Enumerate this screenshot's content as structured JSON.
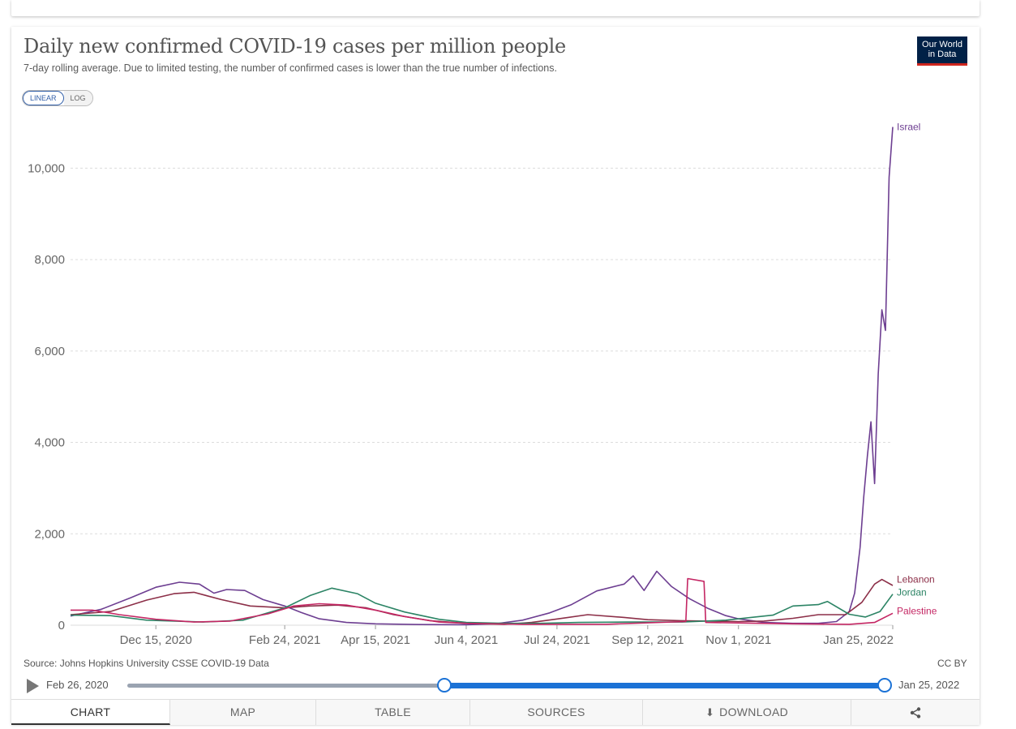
{
  "header": {
    "title": "Daily new confirmed COVID-19 cases per million people",
    "subtitle": "7-day rolling average. Due to limited testing, the number of confirmed cases is lower than the true number of infections.",
    "logo_line1": "Our World",
    "logo_line2": "in Data"
  },
  "scale_toggle": {
    "linear_label": "LINEAR",
    "log_label": "LOG",
    "selected": "linear"
  },
  "footer": {
    "source": "Source: Johns Hopkins University CSSE COVID-19 Data",
    "license": "CC BY"
  },
  "timeline": {
    "start_label": "Feb 26, 2020",
    "end_label": "Jan 25, 2022",
    "selected_start": "Oct 29, 2020",
    "selected_end": "Jan 25, 2022"
  },
  "tabs": [
    {
      "label": "CHART",
      "active": true
    },
    {
      "label": "MAP"
    },
    {
      "label": "TABLE"
    },
    {
      "label": "SOURCES"
    },
    {
      "label": "DOWNLOAD",
      "icon": "download-icon"
    },
    {
      "label": "",
      "icon": "share-icon"
    }
  ],
  "chart_data": {
    "type": "line",
    "title": "Daily new confirmed COVID-19 cases per million people",
    "subtitle": "7-day rolling average. Due to limited testing, the number of confirmed cases is lower than the true number of infections.",
    "xlabel": "",
    "ylabel": "",
    "x_range": [
      "2020-10-29",
      "2022-01-25"
    ],
    "ylim": [
      0,
      11000
    ],
    "y_ticks": [
      0,
      2000,
      4000,
      6000,
      8000,
      10000
    ],
    "y_tick_labels": [
      "0",
      "2,000",
      "4,000",
      "6,000",
      "8,000",
      "10,000"
    ],
    "x_ticks": [
      "2020-12-15",
      "2021-02-24",
      "2021-04-15",
      "2021-06-04",
      "2021-07-24",
      "2021-09-12",
      "2021-11-01",
      "2022-01-25"
    ],
    "x_tick_labels": [
      "Dec 15, 2020",
      "Feb 24, 2021",
      "Apr 15, 2021",
      "Jun 4, 2021",
      "Jul 24, 2021",
      "Sep 12, 2021",
      "Nov 1, 2021",
      "Jan 25, 2022"
    ],
    "grid": "horizontal dashed",
    "legend": "inline labels at right end of lines",
    "series": [
      {
        "name": "Israel",
        "color": "#6d3e91",
        "points": [
          [
            "2020-10-29",
            200
          ],
          [
            "2020-11-15",
            350
          ],
          [
            "2020-12-01",
            600
          ],
          [
            "2020-12-15",
            830
          ],
          [
            "2020-12-28",
            940
          ],
          [
            "2021-01-08",
            900
          ],
          [
            "2021-01-16",
            700
          ],
          [
            "2021-01-23",
            780
          ],
          [
            "2021-02-02",
            760
          ],
          [
            "2021-02-12",
            560
          ],
          [
            "2021-02-24",
            420
          ],
          [
            "2021-03-05",
            280
          ],
          [
            "2021-03-15",
            140
          ],
          [
            "2021-03-30",
            60
          ],
          [
            "2021-04-15",
            30
          ],
          [
            "2021-05-10",
            15
          ],
          [
            "2021-06-04",
            10
          ],
          [
            "2021-06-20",
            30
          ],
          [
            "2021-07-05",
            110
          ],
          [
            "2021-07-20",
            270
          ],
          [
            "2021-08-01",
            450
          ],
          [
            "2021-08-15",
            750
          ],
          [
            "2021-08-30",
            900
          ],
          [
            "2021-09-04",
            1080
          ],
          [
            "2021-09-10",
            760
          ],
          [
            "2021-09-17",
            1180
          ],
          [
            "2021-09-25",
            850
          ],
          [
            "2021-10-05",
            580
          ],
          [
            "2021-10-15",
            370
          ],
          [
            "2021-10-25",
            210
          ],
          [
            "2021-11-01",
            140
          ],
          [
            "2021-11-15",
            60
          ],
          [
            "2021-12-01",
            40
          ],
          [
            "2021-12-15",
            40
          ],
          [
            "2021-12-25",
            80
          ],
          [
            "2022-01-01",
            300
          ],
          [
            "2022-01-04",
            700
          ],
          [
            "2022-01-07",
            1700
          ],
          [
            "2022-01-09",
            2800
          ],
          [
            "2022-01-11",
            3700
          ],
          [
            "2022-01-13",
            4450
          ],
          [
            "2022-01-15",
            3100
          ],
          [
            "2022-01-17",
            5500
          ],
          [
            "2022-01-19",
            6900
          ],
          [
            "2022-01-21",
            6450
          ],
          [
            "2022-01-23",
            9800
          ],
          [
            "2022-01-25",
            10900
          ]
        ]
      },
      {
        "name": "Lebanon",
        "color": "#8c2f48",
        "points": [
          [
            "2020-10-29",
            230
          ],
          [
            "2020-11-20",
            300
          ],
          [
            "2020-12-10",
            550
          ],
          [
            "2020-12-25",
            690
          ],
          [
            "2021-01-05",
            720
          ],
          [
            "2021-01-20",
            560
          ],
          [
            "2021-02-05",
            420
          ],
          [
            "2021-02-24",
            380
          ],
          [
            "2021-03-10",
            420
          ],
          [
            "2021-03-25",
            440
          ],
          [
            "2021-04-10",
            380
          ],
          [
            "2021-04-25",
            230
          ],
          [
            "2021-05-15",
            100
          ],
          [
            "2021-06-04",
            40
          ],
          [
            "2021-06-25",
            20
          ],
          [
            "2021-07-10",
            60
          ],
          [
            "2021-07-25",
            140
          ],
          [
            "2021-08-10",
            230
          ],
          [
            "2021-08-30",
            170
          ],
          [
            "2021-09-12",
            120
          ],
          [
            "2021-09-30",
            100
          ],
          [
            "2021-10-15",
            90
          ],
          [
            "2021-11-01",
            80
          ],
          [
            "2021-11-15",
            90
          ],
          [
            "2021-12-01",
            150
          ],
          [
            "2021-12-15",
            230
          ],
          [
            "2021-12-30",
            230
          ],
          [
            "2022-01-08",
            500
          ],
          [
            "2022-01-15",
            900
          ],
          [
            "2022-01-19",
            1000
          ],
          [
            "2022-01-25",
            870
          ]
        ]
      },
      {
        "name": "Jordan",
        "color": "#2c8465",
        "points": [
          [
            "2020-10-29",
            220
          ],
          [
            "2020-11-20",
            210
          ],
          [
            "2020-12-10",
            110
          ],
          [
            "2021-01-10",
            70
          ],
          [
            "2021-02-01",
            110
          ],
          [
            "2021-02-24",
            380
          ],
          [
            "2021-03-10",
            650
          ],
          [
            "2021-03-22",
            810
          ],
          [
            "2021-04-05",
            690
          ],
          [
            "2021-04-15",
            480
          ],
          [
            "2021-05-01",
            290
          ],
          [
            "2021-05-20",
            130
          ],
          [
            "2021-06-04",
            60
          ],
          [
            "2021-06-25",
            40
          ],
          [
            "2021-07-15",
            40
          ],
          [
            "2021-08-05",
            60
          ],
          [
            "2021-09-01",
            70
          ],
          [
            "2021-10-01",
            70
          ],
          [
            "2021-10-25",
            110
          ],
          [
            "2021-11-10",
            180
          ],
          [
            "2021-11-20",
            220
          ],
          [
            "2021-12-01",
            420
          ],
          [
            "2021-12-15",
            450
          ],
          [
            "2021-12-20",
            520
          ],
          [
            "2022-01-01",
            240
          ],
          [
            "2022-01-10",
            180
          ],
          [
            "2022-01-18",
            300
          ],
          [
            "2022-01-25",
            680
          ]
        ]
      },
      {
        "name": "Palestine",
        "color": "#c42663",
        "points": [
          [
            "2020-10-29",
            330
          ],
          [
            "2020-11-10",
            330
          ],
          [
            "2020-11-25",
            230
          ],
          [
            "2020-12-15",
            130
          ],
          [
            "2021-01-05",
            70
          ],
          [
            "2021-01-25",
            90
          ],
          [
            "2021-02-15",
            250
          ],
          [
            "2021-03-01",
            420
          ],
          [
            "2021-03-15",
            470
          ],
          [
            "2021-03-30",
            440
          ],
          [
            "2021-04-15",
            330
          ],
          [
            "2021-05-01",
            190
          ],
          [
            "2021-05-20",
            70
          ],
          [
            "2021-06-04",
            40
          ],
          [
            "2021-07-05",
            20
          ],
          [
            "2021-07-24",
            20
          ],
          [
            "2021-08-20",
            20
          ],
          [
            "2021-09-10",
            50
          ],
          [
            "2021-10-03",
            80
          ],
          [
            "2021-10-04",
            1020
          ],
          [
            "2021-10-13",
            960
          ],
          [
            "2021-10-14",
            60
          ],
          [
            "2021-11-01",
            50
          ],
          [
            "2021-12-01",
            30
          ],
          [
            "2022-01-01",
            20
          ],
          [
            "2022-01-15",
            60
          ],
          [
            "2022-01-25",
            260
          ]
        ]
      }
    ],
    "label_y_values": {
      "Israel": 10900,
      "Lebanon": 1000,
      "Jordan": 720,
      "Palestine": 310
    }
  }
}
